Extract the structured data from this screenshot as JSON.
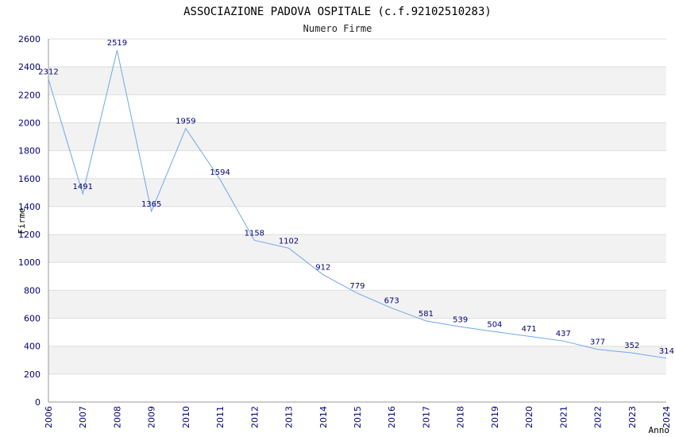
{
  "chart_data": {
    "type": "line",
    "title": "ASSOCIAZIONE PADOVA OSPITALE (c.f.92102510283)",
    "subtitle": "Numero Firme",
    "xlabel": "Anno",
    "ylabel": "Firme",
    "x": [
      "2006",
      "2007",
      "2008",
      "2009",
      "2010",
      "2011",
      "2012",
      "2013",
      "2014",
      "2015",
      "2016",
      "2017",
      "2018",
      "2019",
      "2020",
      "2021",
      "2022",
      "2023",
      "2024"
    ],
    "series": [
      {
        "values": [
          2312,
          1491,
          2519,
          1365,
          1959,
          1594,
          1158,
          1102,
          912,
          779,
          673,
          581,
          539,
          504,
          471,
          437,
          377,
          352,
          314
        ]
      }
    ],
    "ylim": [
      0,
      2600
    ],
    "yticks": [
      0,
      200,
      400,
      600,
      800,
      1000,
      1200,
      1400,
      1600,
      1800,
      2000,
      2200,
      2400,
      2600
    ],
    "grid": true,
    "colors": {
      "line": "#6fa8e8",
      "band": "#f2f2f2",
      "grid": "#dddddd",
      "ticks": "#0000aa",
      "labels": "#000080"
    }
  }
}
